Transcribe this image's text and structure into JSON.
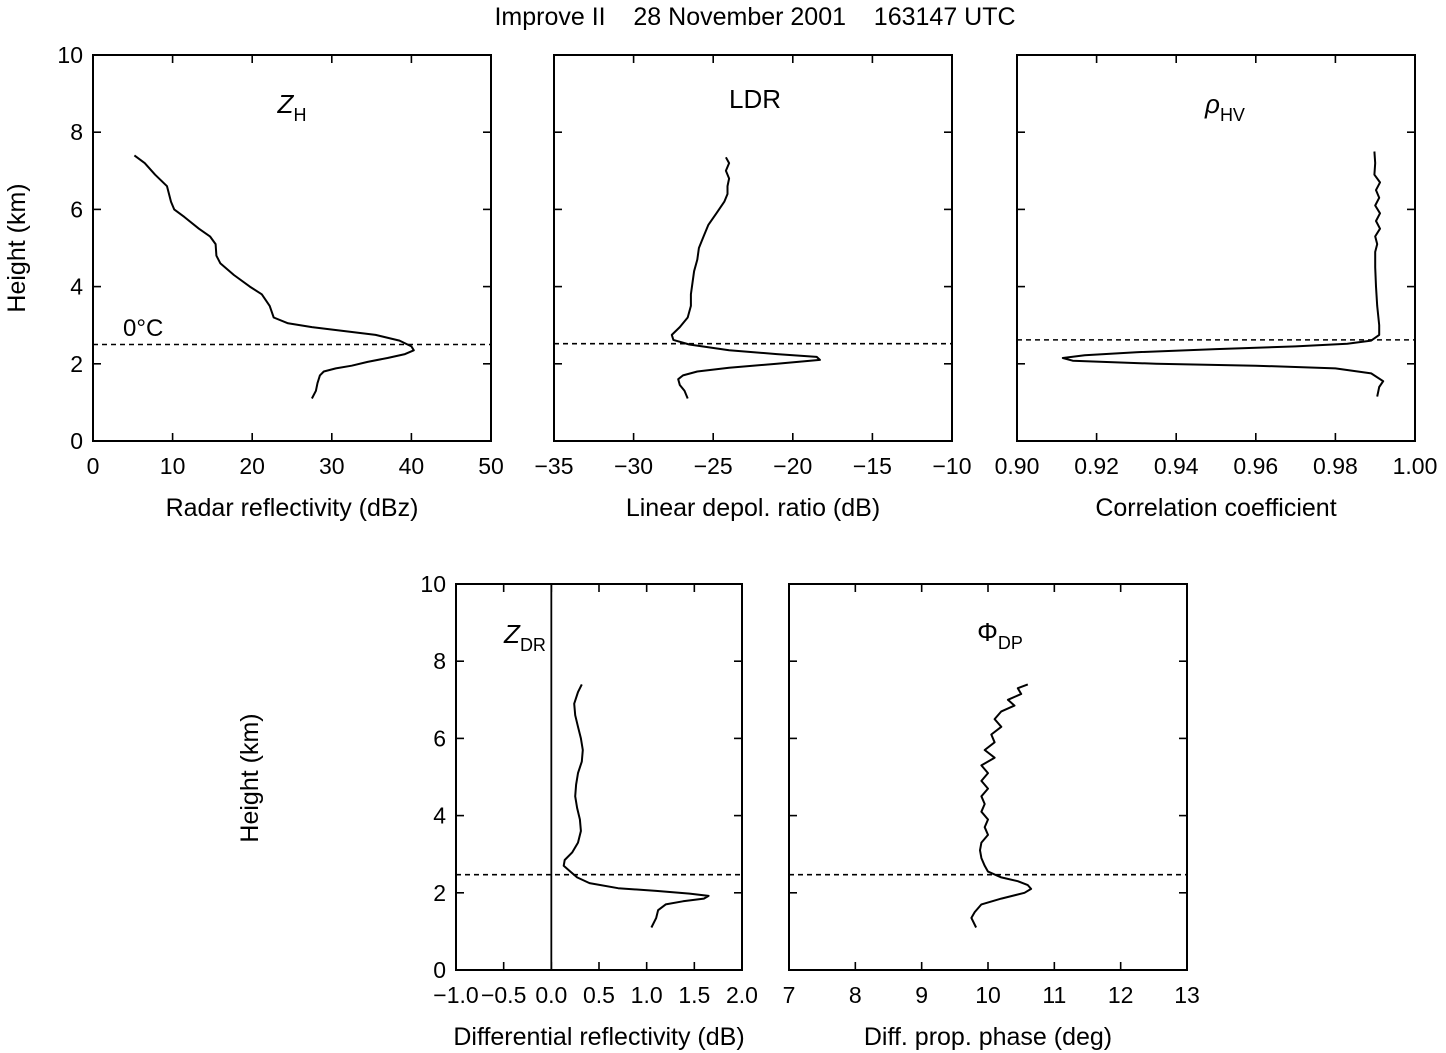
{
  "figure": {
    "title": "Improve II    28 November 2001    163147 UTC",
    "ylabel": "Height (km)",
    "melting_label": "0°C"
  },
  "chart_data": [
    {
      "id": "zh",
      "type": "line",
      "symbol": "Z",
      "symbol_sub": "H",
      "xlabel": "Radar reflectivity (dBz)",
      "ylabel": "Height (km)",
      "xlim": [
        0,
        50
      ],
      "ylim": [
        0,
        10
      ],
      "xticks": [
        0,
        10,
        20,
        30,
        40,
        50
      ],
      "xtick_labels": [
        "0",
        "10",
        "20",
        "30",
        "40",
        "50"
      ],
      "yticks": [
        0,
        2,
        4,
        6,
        8,
        10
      ],
      "ytick_labels": [
        "0",
        "2",
        "4",
        "6",
        "8",
        "10"
      ],
      "melting_level": 2.5,
      "zero_line": null,
      "series": [
        {
          "points": [
            [
              5.2,
              7.4
            ],
            [
              6.5,
              7.2
            ],
            [
              7.8,
              6.9
            ],
            [
              9.3,
              6.6
            ],
            [
              9.8,
              6.2
            ],
            [
              10.2,
              6.0
            ],
            [
              11.5,
              5.8
            ],
            [
              13.3,
              5.5
            ],
            [
              14.7,
              5.3
            ],
            [
              15.4,
              5.1
            ],
            [
              15.5,
              4.8
            ],
            [
              16.0,
              4.6
            ],
            [
              17.7,
              4.3
            ],
            [
              19.7,
              4.0
            ],
            [
              21.2,
              3.8
            ],
            [
              22.2,
              3.5
            ],
            [
              22.7,
              3.2
            ],
            [
              24.5,
              3.05
            ],
            [
              27.5,
              2.95
            ],
            [
              31.5,
              2.85
            ],
            [
              35.5,
              2.75
            ],
            [
              38.5,
              2.6
            ],
            [
              40.0,
              2.45
            ],
            [
              40.3,
              2.35
            ],
            [
              39.2,
              2.25
            ],
            [
              37.0,
              2.15
            ],
            [
              34.5,
              2.05
            ],
            [
              32.5,
              1.95
            ],
            [
              30.5,
              1.88
            ],
            [
              29.0,
              1.8
            ],
            [
              28.5,
              1.7
            ],
            [
              28.2,
              1.5
            ],
            [
              28.0,
              1.3
            ],
            [
              27.5,
              1.1
            ]
          ]
        }
      ]
    },
    {
      "id": "ldr",
      "type": "line",
      "symbol": "LDR",
      "symbol_sub": "",
      "xlabel": "Linear depol. ratio (dB)",
      "ylabel": "",
      "xlim": [
        -35,
        -10
      ],
      "ylim": [
        0,
        10
      ],
      "xticks": [
        -35,
        -30,
        -25,
        -20,
        -15,
        -10
      ],
      "xtick_labels": [
        "−35",
        "−30",
        "−25",
        "−20",
        "−15",
        "−10"
      ],
      "yticks": [
        0,
        2,
        4,
        6,
        8,
        10
      ],
      "ytick_labels": [],
      "melting_level": 2.52,
      "zero_line": null,
      "series": [
        {
          "points": [
            [
              -24.2,
              7.35
            ],
            [
              -24.0,
              7.2
            ],
            [
              -24.2,
              7.0
            ],
            [
              -24.0,
              6.8
            ],
            [
              -24.1,
              6.6
            ],
            [
              -24.1,
              6.4
            ],
            [
              -24.3,
              6.2
            ],
            [
              -24.8,
              5.9
            ],
            [
              -25.3,
              5.6
            ],
            [
              -25.6,
              5.3
            ],
            [
              -25.9,
              5.0
            ],
            [
              -26.0,
              4.7
            ],
            [
              -26.2,
              4.4
            ],
            [
              -26.3,
              4.1
            ],
            [
              -26.4,
              3.8
            ],
            [
              -26.4,
              3.5
            ],
            [
              -26.6,
              3.2
            ],
            [
              -27.1,
              2.95
            ],
            [
              -27.6,
              2.75
            ],
            [
              -27.5,
              2.62
            ],
            [
              -26.5,
              2.5
            ],
            [
              -24.0,
              2.35
            ],
            [
              -21.0,
              2.25
            ],
            [
              -18.5,
              2.18
            ],
            [
              -18.3,
              2.1
            ],
            [
              -21.0,
              2.0
            ],
            [
              -24.0,
              1.9
            ],
            [
              -26.0,
              1.8
            ],
            [
              -26.9,
              1.7
            ],
            [
              -27.2,
              1.6
            ],
            [
              -27.1,
              1.45
            ],
            [
              -26.8,
              1.3
            ],
            [
              -26.6,
              1.1
            ]
          ]
        }
      ]
    },
    {
      "id": "rhohv",
      "type": "line",
      "symbol": "ρ",
      "symbol_sub": "HV",
      "xlabel": "Correlation coefficient",
      "ylabel": "",
      "xlim": [
        0.9,
        1.0
      ],
      "ylim": [
        0,
        10
      ],
      "xticks": [
        0.9,
        0.92,
        0.94,
        0.96,
        0.98,
        1.0
      ],
      "xtick_labels": [
        "0.90",
        "0.92",
        "0.94",
        "0.96",
        "0.98",
        "1.00"
      ],
      "yticks": [
        0,
        2,
        4,
        6,
        8,
        10
      ],
      "ytick_labels": [],
      "melting_level": 2.62,
      "zero_line": null,
      "series": [
        {
          "points": [
            [
              0.9898,
              7.5
            ],
            [
              0.99,
              7.2
            ],
            [
              0.9898,
              6.9
            ],
            [
              0.9912,
              6.7
            ],
            [
              0.9902,
              6.5
            ],
            [
              0.991,
              6.3
            ],
            [
              0.99,
              6.1
            ],
            [
              0.9912,
              5.9
            ],
            [
              0.9902,
              5.7
            ],
            [
              0.9912,
              5.5
            ],
            [
              0.99,
              5.3
            ],
            [
              0.9905,
              5.1
            ],
            [
              0.99,
              4.9
            ],
            [
              0.99,
              4.5
            ],
            [
              0.9902,
              4.0
            ],
            [
              0.9905,
              3.5
            ],
            [
              0.991,
              3.0
            ],
            [
              0.991,
              2.75
            ],
            [
              0.989,
              2.6
            ],
            [
              0.983,
              2.52
            ],
            [
              0.97,
              2.45
            ],
            [
              0.95,
              2.38
            ],
            [
              0.93,
              2.3
            ],
            [
              0.917,
              2.22
            ],
            [
              0.9115,
              2.15
            ],
            [
              0.914,
              2.08
            ],
            [
              0.935,
              2.0
            ],
            [
              0.96,
              1.95
            ],
            [
              0.98,
              1.88
            ],
            [
              0.989,
              1.75
            ],
            [
              0.992,
              1.55
            ],
            [
              0.991,
              1.4
            ],
            [
              0.9905,
              1.15
            ]
          ]
        }
      ]
    },
    {
      "id": "zdr",
      "type": "line",
      "symbol": "Z",
      "symbol_sub": "DR",
      "xlabel": "Differential reflectivity (dB)",
      "ylabel": "Height (km)",
      "xlim": [
        -1.0,
        2.0
      ],
      "ylim": [
        0,
        10
      ],
      "xticks": [
        -1.0,
        -0.5,
        0.0,
        0.5,
        1.0,
        1.5,
        2.0
      ],
      "xtick_labels": [
        "−1.0",
        "−0.5",
        "0.0",
        "0.5",
        "1.0",
        "1.5",
        "2.0"
      ],
      "yticks": [
        0,
        2,
        4,
        6,
        8,
        10
      ],
      "ytick_labels": [
        "0",
        "2",
        "4",
        "6",
        "8",
        "10"
      ],
      "melting_level": 2.47,
      "zero_line": 0.0,
      "series": [
        {
          "points": [
            [
              0.32,
              7.4
            ],
            [
              0.28,
              7.2
            ],
            [
              0.24,
              6.9
            ],
            [
              0.25,
              6.6
            ],
            [
              0.28,
              6.3
            ],
            [
              0.31,
              6.0
            ],
            [
              0.33,
              5.7
            ],
            [
              0.32,
              5.4
            ],
            [
              0.28,
              5.1
            ],
            [
              0.26,
              4.8
            ],
            [
              0.25,
              4.5
            ],
            [
              0.27,
              4.2
            ],
            [
              0.3,
              3.9
            ],
            [
              0.31,
              3.6
            ],
            [
              0.28,
              3.3
            ],
            [
              0.22,
              3.05
            ],
            [
              0.14,
              2.85
            ],
            [
              0.13,
              2.7
            ],
            [
              0.2,
              2.55
            ],
            [
              0.27,
              2.4
            ],
            [
              0.4,
              2.25
            ],
            [
              0.7,
              2.12
            ],
            [
              1.1,
              2.05
            ],
            [
              1.45,
              1.98
            ],
            [
              1.65,
              1.92
            ],
            [
              1.6,
              1.85
            ],
            [
              1.38,
              1.78
            ],
            [
              1.2,
              1.7
            ],
            [
              1.12,
              1.55
            ],
            [
              1.1,
              1.35
            ],
            [
              1.05,
              1.1
            ]
          ]
        }
      ]
    },
    {
      "id": "phidp",
      "type": "line",
      "symbol": "Φ",
      "symbol_sub": "DP",
      "xlabel": "Diff. prop. phase (deg)",
      "ylabel": "",
      "xlim": [
        7,
        13
      ],
      "ylim": [
        0,
        10
      ],
      "xticks": [
        7,
        8,
        9,
        10,
        11,
        12,
        13
      ],
      "xtick_labels": [
        "7",
        "8",
        "9",
        "10",
        "11",
        "12",
        "13"
      ],
      "yticks": [
        0,
        2,
        4,
        6,
        8,
        10
      ],
      "ytick_labels": [],
      "melting_level": 2.47,
      "zero_line": null,
      "series": [
        {
          "points": [
            [
              10.6,
              7.4
            ],
            [
              10.45,
              7.3
            ],
            [
              10.5,
              7.15
            ],
            [
              10.3,
              7.0
            ],
            [
              10.4,
              6.85
            ],
            [
              10.2,
              6.7
            ],
            [
              10.1,
              6.5
            ],
            [
              10.2,
              6.3
            ],
            [
              10.05,
              6.1
            ],
            [
              10.1,
              5.9
            ],
            [
              9.95,
              5.7
            ],
            [
              10.1,
              5.5
            ],
            [
              9.9,
              5.3
            ],
            [
              10.0,
              5.1
            ],
            [
              9.9,
              4.9
            ],
            [
              10.0,
              4.7
            ],
            [
              9.9,
              4.5
            ],
            [
              9.95,
              4.3
            ],
            [
              9.9,
              4.1
            ],
            [
              10.0,
              3.9
            ],
            [
              9.95,
              3.7
            ],
            [
              10.0,
              3.5
            ],
            [
              9.9,
              3.3
            ],
            [
              9.88,
              3.1
            ],
            [
              9.9,
              2.9
            ],
            [
              9.95,
              2.7
            ],
            [
              10.0,
              2.55
            ],
            [
              10.2,
              2.4
            ],
            [
              10.45,
              2.3
            ],
            [
              10.6,
              2.2
            ],
            [
              10.65,
              2.1
            ],
            [
              10.55,
              2.0
            ],
            [
              10.2,
              1.85
            ],
            [
              9.9,
              1.7
            ],
            [
              9.8,
              1.5
            ],
            [
              9.75,
              1.35
            ],
            [
              9.82,
              1.1
            ]
          ]
        }
      ]
    }
  ]
}
